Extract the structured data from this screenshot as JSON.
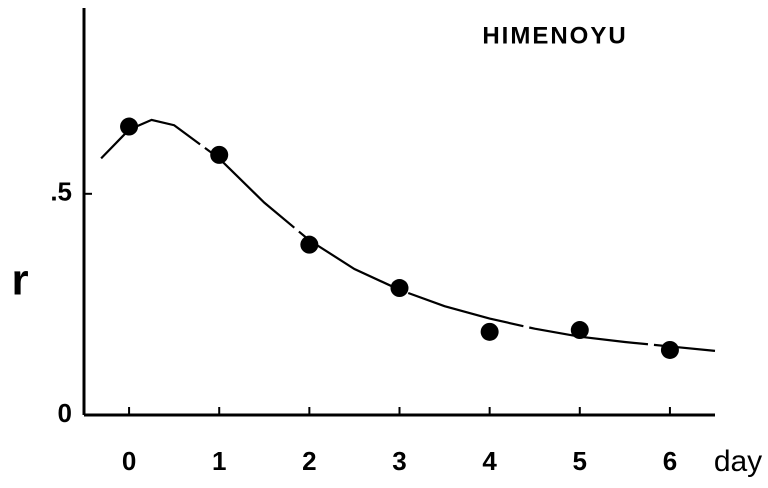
{
  "chart_data": {
    "type": "scatter",
    "title": "HIMENOYU",
    "y_label": "r",
    "x_label": "day",
    "xlim": [
      -0.5,
      6.5
    ],
    "ylim": [
      0,
      0.92
    ],
    "xticks": [
      0,
      1,
      2,
      3,
      4,
      5,
      6
    ],
    "yticks": [
      0,
      {
        "value": 0.5,
        "label": ".5"
      }
    ],
    "color": "#000000",
    "series": [
      {
        "x": [
          0,
          1,
          2,
          3,
          4,
          5,
          6
        ],
        "values": [
          0.652,
          0.588,
          0.385,
          0.287,
          0.188,
          0.192,
          0.147
        ]
      },
      {
        "x": [
          -0.31,
          0,
          0.25,
          0.5,
          1,
          1.5,
          2,
          2.5,
          3,
          3.5,
          4,
          4.5,
          5,
          5.5,
          6,
          6.5
        ],
        "values": [
          0.58,
          0.645,
          0.667,
          0.655,
          0.58,
          0.48,
          0.395,
          0.33,
          0.283,
          0.246,
          0.218,
          0.195,
          0.177,
          0.165,
          0.155,
          0.145
        ]
      }
    ]
  }
}
